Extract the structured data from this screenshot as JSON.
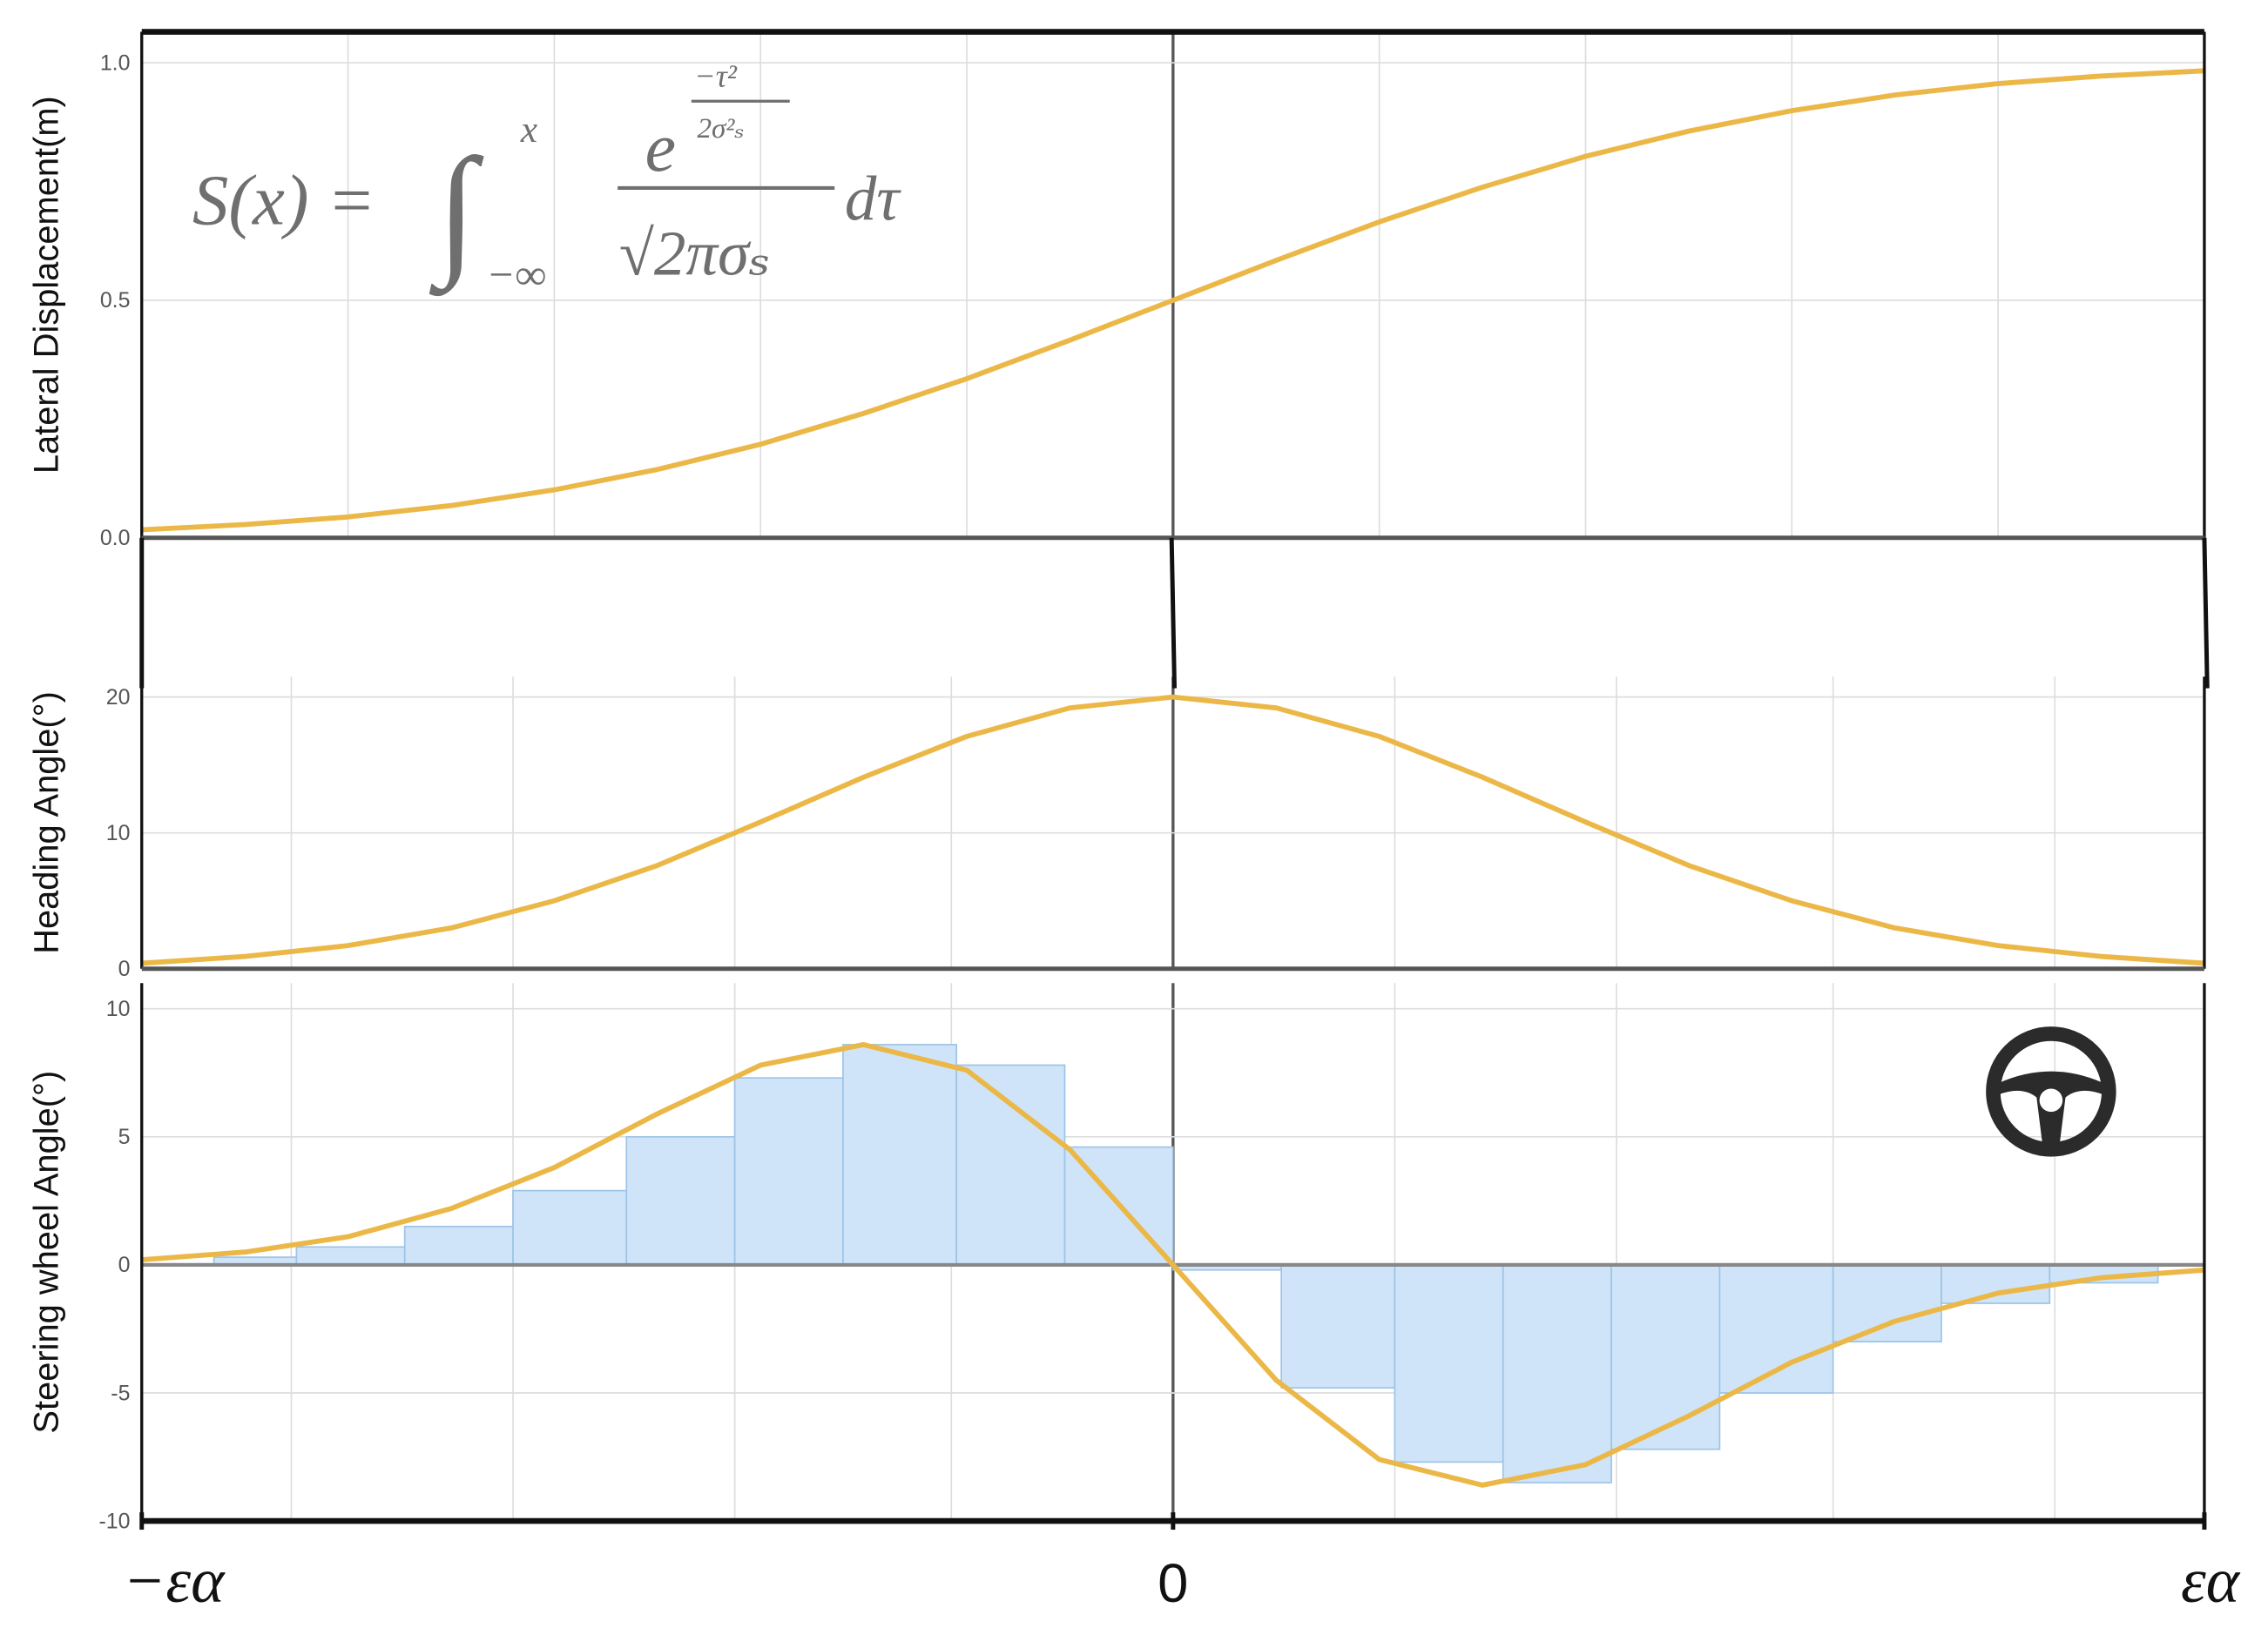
{
  "chart_data": [
    {
      "type": "line",
      "ylabel": "Lateral Displacement(m)",
      "xlim": [
        -1,
        1
      ],
      "ylim": [
        0,
        1.065
      ],
      "yticks": [
        {
          "value": 0,
          "label": "0.0"
        },
        {
          "value": 0.5,
          "label": "0.5"
        },
        {
          "value": 1,
          "label": "1.0"
        }
      ],
      "xgrid": [
        -0.8,
        -0.6,
        -0.4,
        -0.2,
        0,
        0.2,
        0.4,
        0.6,
        0.8
      ],
      "grid": true,
      "x": [
        -1,
        -0.9,
        -0.8,
        -0.7,
        -0.6,
        -0.5,
        -0.4,
        -0.3,
        -0.2,
        -0.1,
        0,
        0.1,
        0.2,
        0.3,
        0.4,
        0.5,
        0.6,
        0.7,
        0.8,
        0.9,
        1
      ],
      "series": [
        {
          "color": "#ebb848",
          "values": [
            0.017,
            0.028,
            0.044,
            0.068,
            0.101,
            0.144,
            0.197,
            0.262,
            0.335,
            0.416,
            0.5,
            0.584,
            0.665,
            0.738,
            0.803,
            0.856,
            0.899,
            0.932,
            0.956,
            0.972,
            0.983
          ]
        }
      ],
      "annotation": {
        "lhs": "S(x) =",
        "integral": "∫",
        "upper": "x",
        "lower": "−∞",
        "base": "e",
        "exp_num": "−τ²",
        "exp_den": "2σ²ₛ",
        "denominator": "√2πσₛ",
        "differential": "dτ"
      }
    },
    {
      "type": "line",
      "ylabel": "Heading Angle(°)",
      "xlim": [
        -1,
        1
      ],
      "ylim": [
        0,
        21.5
      ],
      "yticks": [
        0,
        10,
        20
      ],
      "xgrid": [
        -0.855,
        -0.64,
        -0.425,
        -0.215,
        0,
        0.215,
        0.43,
        0.64,
        0.855
      ],
      "grid": true,
      "x": [
        -1,
        -0.9,
        -0.8,
        -0.7,
        -0.6,
        -0.5,
        -0.4,
        -0.3,
        -0.2,
        -0.1,
        0,
        0.1,
        0.2,
        0.3,
        0.4,
        0.5,
        0.6,
        0.7,
        0.8,
        0.9,
        1
      ],
      "series": [
        {
          "color": "#ebb848",
          "values": [
            0.4,
            0.9,
            1.7,
            3.0,
            5.0,
            7.6,
            10.8,
            14.1,
            17.1,
            19.2,
            20,
            19.2,
            17.1,
            14.1,
            10.8,
            7.6,
            5.0,
            3.0,
            1.7,
            0.9,
            0.4
          ]
        }
      ]
    },
    {
      "type": "combo",
      "ylabel": "Steering wheel Angle(°)",
      "xlim": [
        -1,
        1
      ],
      "ylim": [
        -10,
        11
      ],
      "yticks": [
        -10,
        -5,
        0,
        5,
        10
      ],
      "xticks": [
        {
          "value": -1,
          "label": "−εα"
        },
        0,
        {
          "value": 1,
          "label": "εα"
        }
      ],
      "xgrid": [
        -0.855,
        -0.64,
        -0.425,
        -0.215,
        0,
        0.215,
        0.43,
        0.64,
        0.855
      ],
      "grid": true,
      "histogram": {
        "color": "#cfe4f8",
        "edge_color": "#9cc3e6",
        "bins": [
          -0.93,
          -0.85,
          -0.745,
          -0.64,
          -0.53,
          -0.425,
          -0.32,
          -0.21,
          -0.105,
          0,
          0.105,
          0.215,
          0.32,
          0.425,
          0.53,
          0.64,
          0.745,
          0.85,
          0.955
        ],
        "values": [
          0.3,
          0.7,
          1.5,
          2.9,
          5.0,
          7.3,
          8.6,
          7.8,
          4.6,
          -0.2,
          -4.8,
          -7.7,
          -8.5,
          -7.2,
          -5.0,
          -3.0,
          -1.5,
          -0.7
        ]
      },
      "x": [
        -1,
        -0.9,
        -0.8,
        -0.7,
        -0.6,
        -0.5,
        -0.4,
        -0.3,
        -0.2,
        -0.1,
        0,
        0.1,
        0.2,
        0.3,
        0.4,
        0.5,
        0.6,
        0.7,
        0.8,
        0.9,
        1
      ],
      "series": [
        {
          "color": "#ebb848",
          "values": [
            0.2,
            0.5,
            1.1,
            2.2,
            3.8,
            5.9,
            7.8,
            8.6,
            7.6,
            4.5,
            0,
            -4.5,
            -7.6,
            -8.6,
            -7.8,
            -5.9,
            -3.8,
            -2.2,
            -1.1,
            -0.5,
            -0.2
          ]
        }
      ]
    }
  ]
}
